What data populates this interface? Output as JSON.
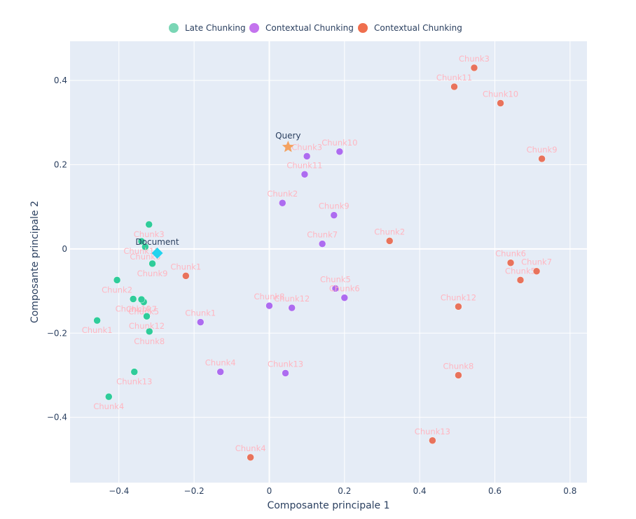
{
  "chart_data": {
    "type": "scatter",
    "xlabel": "Composante principale 1",
    "ylabel": "Composante principale 2",
    "xlim": [
      -0.53,
      0.845
    ],
    "ylim": [
      -0.555,
      0.493
    ],
    "xticks": [
      -0.4,
      -0.2,
      0,
      0.2,
      0.4,
      0.6,
      0.8
    ],
    "xtick_labels": [
      "−0.4",
      "−0.2",
      "0",
      "0.2",
      "0.4",
      "0.6",
      "0.8"
    ],
    "yticks": [
      -0.4,
      -0.2,
      0,
      0.2,
      0.4
    ],
    "ytick_labels": [
      "−0.4",
      "−0.2",
      "0",
      "0.2",
      "0.4"
    ],
    "grid": true,
    "legend_position": "top-center",
    "colors": {
      "plot_bg": "#e5ecf6",
      "grid": "#ffffff",
      "point_label": "#ffb6c1",
      "axis_text": "#2a3f5f"
    },
    "series": [
      {
        "name": "Late Chunking",
        "color": "#2fcc9a",
        "legend_color": "#7ad6b5",
        "points": [
          {
            "label": "Chunk1",
            "x": -0.458,
            "y": -0.17
          },
          {
            "label": "Chunk2",
            "x": -0.405,
            "y": -0.074
          },
          {
            "label": "Chunk3",
            "x": -0.32,
            "y": 0.058
          },
          {
            "label": "Chunk4",
            "x": -0.427,
            "y": -0.351
          },
          {
            "label": "Chunk5",
            "x": -0.334,
            "y": -0.126
          },
          {
            "label": "Chunk6",
            "x": -0.33,
            "y": 0.005
          },
          {
            "label": "Chunk7",
            "x": -0.34,
            "y": -0.12
          },
          {
            "label": "Chunk8",
            "x": -0.319,
            "y": -0.196
          },
          {
            "label": "Chunk9",
            "x": -0.311,
            "y": -0.035
          },
          {
            "label": "Chunk10",
            "x": -0.362,
            "y": -0.119
          },
          {
            "label": "Chunk11",
            "x": -0.34,
            "y": 0.018
          },
          {
            "label": "Chunk12",
            "x": -0.326,
            "y": -0.16
          },
          {
            "label": "Chunk13",
            "x": -0.359,
            "y": -0.292
          }
        ]
      },
      {
        "name": "Contextual Chunking",
        "color": "#ad6cf0",
        "legend_color": "#c474ee",
        "points": [
          {
            "label": "Chunk1",
            "x": -0.183,
            "y": -0.174
          },
          {
            "label": "Chunk2",
            "x": 0.035,
            "y": 0.109
          },
          {
            "label": "Chunk3",
            "x": 0.1,
            "y": 0.22
          },
          {
            "label": "Chunk4",
            "x": -0.13,
            "y": -0.292
          },
          {
            "label": "Chunk5",
            "x": 0.176,
            "y": -0.094
          },
          {
            "label": "Chunk6",
            "x": 0.2,
            "y": -0.116
          },
          {
            "label": "Chunk7",
            "x": 0.141,
            "y": 0.012
          },
          {
            "label": "Chunk8",
            "x": 0.0,
            "y": -0.135
          },
          {
            "label": "Chunk9",
            "x": 0.172,
            "y": 0.08
          },
          {
            "label": "Chunk10",
            "x": 0.187,
            "y": 0.231
          },
          {
            "label": "Chunk11",
            "x": 0.094,
            "y": 0.177
          },
          {
            "label": "Chunk12",
            "x": 0.06,
            "y": -0.14
          },
          {
            "label": "Chunk13",
            "x": 0.043,
            "y": -0.295
          }
        ]
      },
      {
        "name": "Contextual Chunking",
        "color": "#e8735c",
        "legend_color": "#ef6f4e",
        "points": [
          {
            "label": "Chunk1",
            "x": -0.222,
            "y": -0.064
          },
          {
            "label": "Chunk2",
            "x": 0.32,
            "y": 0.019
          },
          {
            "label": "Chunk3",
            "x": 0.545,
            "y": 0.43
          },
          {
            "label": "Chunk4",
            "x": -0.05,
            "y": -0.495
          },
          {
            "label": "Chunk5",
            "x": 0.668,
            "y": -0.074
          },
          {
            "label": "Chunk6",
            "x": 0.642,
            "y": -0.033
          },
          {
            "label": "Chunk7",
            "x": 0.711,
            "y": -0.053
          },
          {
            "label": "Chunk8",
            "x": 0.503,
            "y": -0.3
          },
          {
            "label": "Chunk9",
            "x": 0.725,
            "y": 0.214
          },
          {
            "label": "Chunk10",
            "x": 0.615,
            "y": 0.346
          },
          {
            "label": "Chunk11",
            "x": 0.492,
            "y": 0.385
          },
          {
            "label": "Chunk12",
            "x": 0.503,
            "y": -0.137
          },
          {
            "label": "Chunk13",
            "x": 0.434,
            "y": -0.455
          }
        ]
      }
    ],
    "annotations": [
      {
        "label": "Query",
        "x": 0.05,
        "y": 0.242,
        "marker": "star",
        "color": "#f4a261",
        "label_color": "#2a3f5f"
      },
      {
        "label": "Document",
        "x": -0.298,
        "y": -0.01,
        "marker": "diamond",
        "color": "#22d3ee",
        "label_color": "#2a3f5f"
      }
    ]
  }
}
